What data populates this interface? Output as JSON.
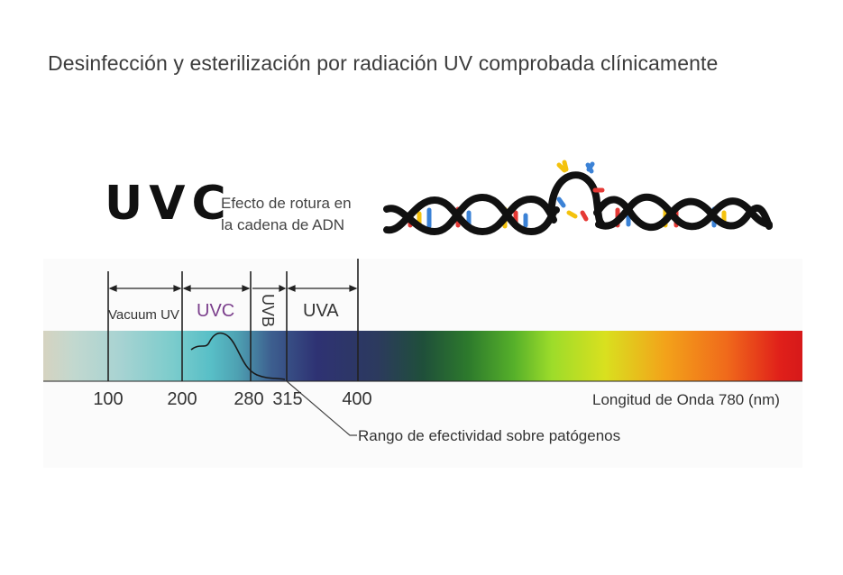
{
  "title": "Desinfección y esterilización por radiación UV comprobada clínicamente",
  "uvc_heading": "UVC",
  "uvc_effect": {
    "line1": "Efecto de rotura en",
    "line2": "la cadena de ADN"
  },
  "bands": {
    "vacuum": "Vacuum UV",
    "uvc": "UVC",
    "uvb": "UVB",
    "uva": "UVA"
  },
  "ticks": [
    "100",
    "200",
    "280",
    "315",
    "400"
  ],
  "wavelength_label": "Longitud de Onda 780 (nm)",
  "range_label": "Rango de efectividad sobre patógenos",
  "colors": {
    "uvc_band_text": "#7b3f8c",
    "dna_strand": "#111111",
    "base_pair_red": "#e53935",
    "base_pair_yellow": "#f4c20d",
    "base_pair_blue": "#3b82d6"
  },
  "icons": [
    "dna-double-helix-icon",
    "broken-strand-icon"
  ]
}
